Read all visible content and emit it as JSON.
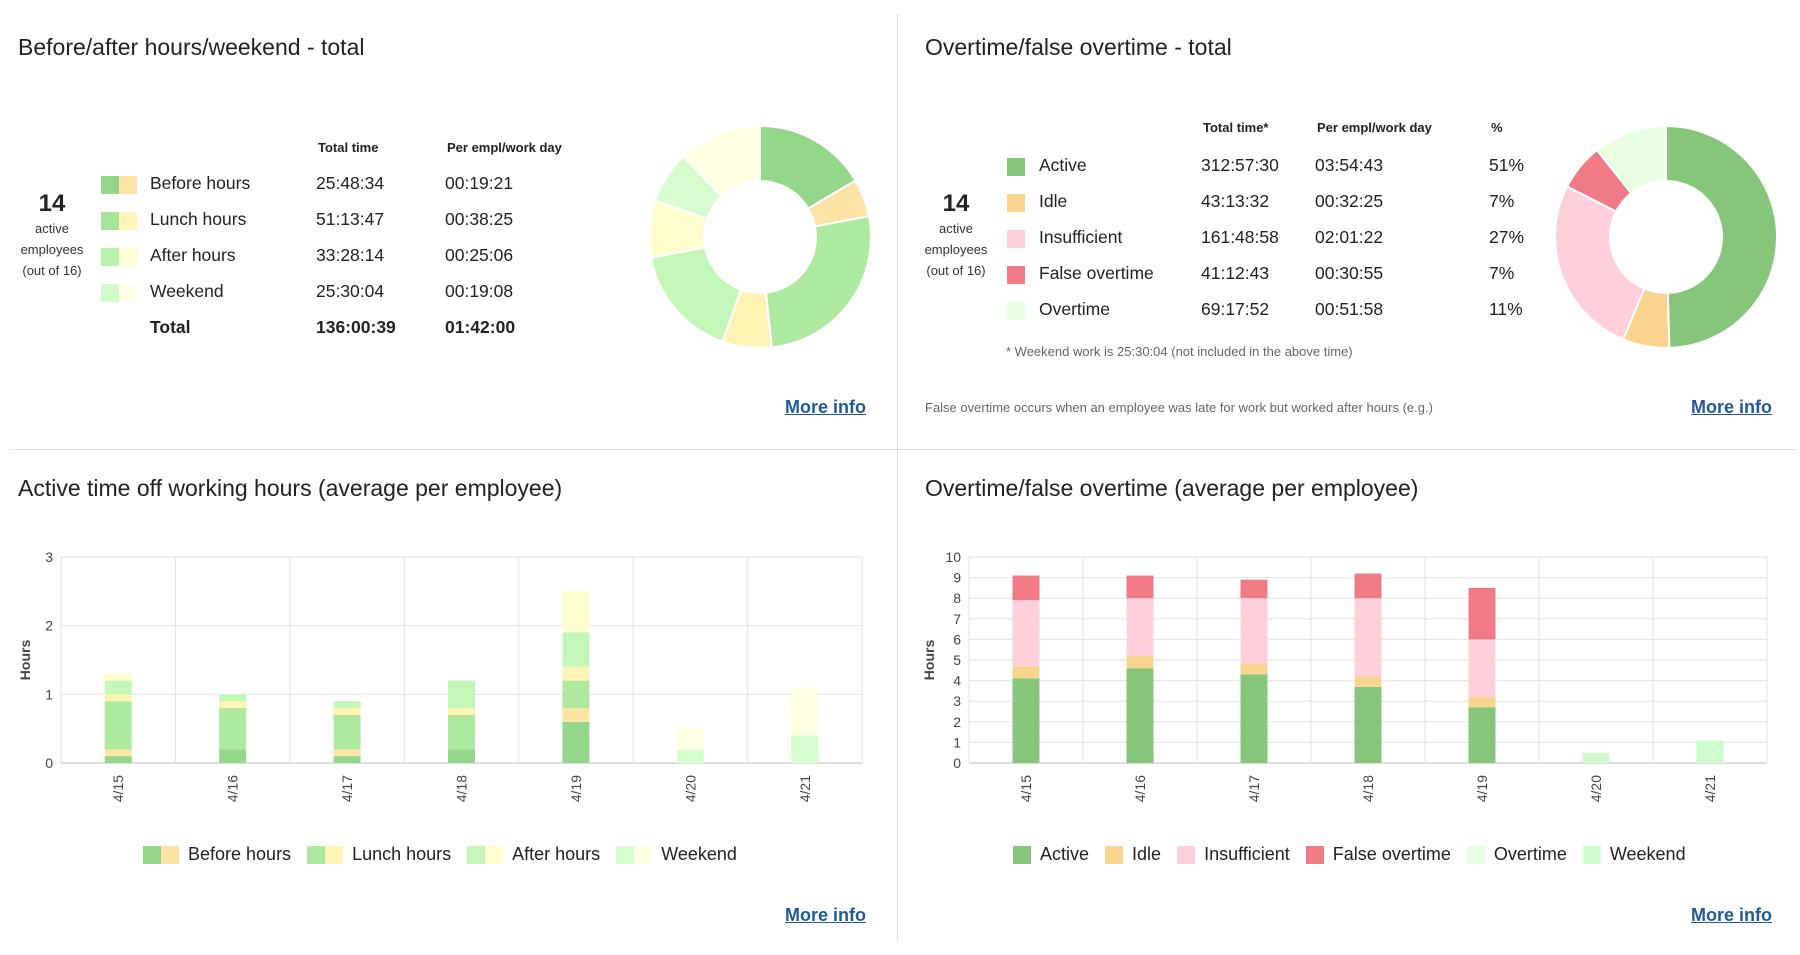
{
  "panel1": {
    "title": "Before/after hours/weekend - total",
    "employees": {
      "count": "14",
      "line1": "active",
      "line2": "employees",
      "line3": "(out of 16)"
    },
    "headers": {
      "total": "Total time",
      "per": "Per empl/work day"
    },
    "rows": [
      {
        "label": "Before hours",
        "total": "25:48:34",
        "per": "00:19:21",
        "c1": "#94d68a",
        "c2": "#fde3a6"
      },
      {
        "label": "Lunch hours",
        "total": "51:13:47",
        "per": "00:38:25",
        "c1": "#a8e39a",
        "c2": "#fff5b8"
      },
      {
        "label": "After hours",
        "total": "33:28:14",
        "per": "00:25:06",
        "c1": "#b9f2ae",
        "c2": "#fffcd6"
      },
      {
        "label": "Weekend",
        "total": "25:30:04",
        "per": "00:19:08",
        "c1": "#d2fbcc",
        "c2": "#ffffe6"
      }
    ],
    "total_row": {
      "label": "Total",
      "total": "136:00:39",
      "per": "01:42:00"
    },
    "more": "More info"
  },
  "panel2": {
    "title": "Overtime/false overtime - total",
    "employees": {
      "count": "14",
      "line1": "active",
      "line2": "employees",
      "line3": "(out of 16)"
    },
    "headers": {
      "total": "Total time*",
      "per": "Per empl/work day",
      "pct": "%"
    },
    "rows": [
      {
        "label": "Active",
        "total": "312:57:30",
        "per": "03:54:43",
        "pct": "51%",
        "color": "#85c67a"
      },
      {
        "label": "Idle",
        "total": "43:13:32",
        "per": "00:32:25",
        "pct": "7%",
        "color": "#f9d48e"
      },
      {
        "label": "Insufficient",
        "total": "161:48:58",
        "per": "02:01:22",
        "pct": "27%",
        "color": "#ffd0dc"
      },
      {
        "label": "False overtime",
        "total": "41:12:43",
        "per": "00:30:55",
        "pct": "7%",
        "color": "#f07b87"
      },
      {
        "label": "Overtime",
        "total": "69:17:52",
        "per": "00:51:58",
        "pct": "11%",
        "color": "#e9fde3"
      }
    ],
    "footnote": "* Weekend work is 25:30:04 (not included in the above time)",
    "note": "False overtime occurs when an employee was late for work but worked after hours (e.g.)",
    "more": "More info"
  },
  "panel3": {
    "title": "Active time off working hours (average per employee)",
    "more": "More info"
  },
  "panel4": {
    "title": "Overtime/false overtime (average per employee)",
    "more": "More info"
  },
  "chart_data": [
    {
      "type": "pie",
      "title": "Before/after hours/weekend - total",
      "slices": [
        {
          "name": "Before hours (green)",
          "value": 16.5,
          "color": "#94d68a"
        },
        {
          "name": "Before hours (yellow)",
          "value": 5.5,
          "color": "#fde3a6"
        },
        {
          "name": "Lunch hours (green)",
          "value": 26.3,
          "color": "#ade99f"
        },
        {
          "name": "Lunch hours (yellow)",
          "value": 7.2,
          "color": "#fff4b3"
        },
        {
          "name": "After hours (green)",
          "value": 16.5,
          "color": "#c3f7b7"
        },
        {
          "name": "After hours (yellow)",
          "value": 8.3,
          "color": "#fffccd"
        },
        {
          "name": "Weekend (green)",
          "value": 7.6,
          "color": "#d7fccf"
        },
        {
          "name": "Weekend (yellow)",
          "value": 12.1,
          "color": "#ffffe3"
        }
      ]
    },
    {
      "type": "pie",
      "title": "Overtime/false overtime - total",
      "slices": [
        {
          "name": "Active",
          "value": 51,
          "color": "#85c67a"
        },
        {
          "name": "Idle",
          "value": 7,
          "color": "#f9d48e"
        },
        {
          "name": "Insufficient",
          "value": 27,
          "color": "#ffd0dc"
        },
        {
          "name": "False overtime",
          "value": 7,
          "color": "#f07b87"
        },
        {
          "name": "Overtime",
          "value": 11,
          "color": "#e9fde3"
        }
      ]
    },
    {
      "type": "bar",
      "stacked": true,
      "title": "Active time off working hours (average per employee)",
      "ylabel": "Hours",
      "ylim": [
        0,
        3
      ],
      "yticks": [
        0,
        1,
        2,
        3
      ],
      "categories": [
        "4/15",
        "4/16",
        "4/17",
        "4/18",
        "4/19",
        "4/20",
        "4/21"
      ],
      "series": [
        {
          "name": "Before hours (green)",
          "color": "#94d68a",
          "values": [
            0.1,
            0.2,
            0.1,
            0.2,
            0.6,
            0,
            0
          ]
        },
        {
          "name": "Before hours (yellow)",
          "color": "#fde3a6",
          "values": [
            0.1,
            0,
            0.1,
            0,
            0.2,
            0,
            0
          ]
        },
        {
          "name": "Lunch hours (green)",
          "color": "#ade99f",
          "values": [
            0.7,
            0.6,
            0.5,
            0.5,
            0.4,
            0,
            0
          ]
        },
        {
          "name": "Lunch hours (yellow)",
          "color": "#fff4b3",
          "values": [
            0.1,
            0.1,
            0.1,
            0.1,
            0.2,
            0,
            0
          ]
        },
        {
          "name": "After hours (green)",
          "color": "#c3f7b7",
          "values": [
            0.2,
            0.1,
            0.1,
            0.4,
            0.5,
            0,
            0
          ]
        },
        {
          "name": "After hours (yellow)",
          "color": "#fffccd",
          "values": [
            0.1,
            0,
            0,
            0,
            0.6,
            0,
            0
          ]
        },
        {
          "name": "Weekend (green)",
          "color": "#d7fccf",
          "values": [
            0,
            0,
            0,
            0,
            0,
            0.2,
            0.4
          ]
        },
        {
          "name": "Weekend (yellow)",
          "color": "#ffffe3",
          "values": [
            0,
            0,
            0,
            0,
            0,
            0.3,
            0.7
          ]
        }
      ],
      "legend": [
        {
          "name": "Before hours",
          "colors": [
            "#94d68a",
            "#fde3a6"
          ]
        },
        {
          "name": "Lunch hours",
          "colors": [
            "#ade99f",
            "#fff4b3"
          ]
        },
        {
          "name": "After hours",
          "colors": [
            "#c3f7b7",
            "#fffccd"
          ]
        },
        {
          "name": "Weekend",
          "colors": [
            "#d7fccf",
            "#ffffe3"
          ]
        }
      ]
    },
    {
      "type": "bar",
      "stacked": true,
      "title": "Overtime/false overtime (average per employee)",
      "ylabel": "Hours",
      "ylim": [
        0,
        10
      ],
      "yticks": [
        0,
        1,
        2,
        3,
        4,
        5,
        6,
        7,
        8,
        9,
        10
      ],
      "categories": [
        "4/15",
        "4/16",
        "4/17",
        "4/18",
        "4/19",
        "4/20",
        "4/21"
      ],
      "series": [
        {
          "name": "Active",
          "color": "#85c67a",
          "values": [
            4.1,
            4.6,
            4.3,
            3.7,
            2.7,
            0,
            0
          ]
        },
        {
          "name": "Idle",
          "color": "#f9d48e",
          "values": [
            0.6,
            0.6,
            0.5,
            0.5,
            0.5,
            0,
            0
          ]
        },
        {
          "name": "Insufficient",
          "color": "#ffd0dc",
          "values": [
            3.2,
            2.8,
            3.2,
            3.8,
            2.8,
            0,
            0
          ]
        },
        {
          "name": "False overtime",
          "color": "#f07b87",
          "values": [
            1.2,
            1.1,
            0.9,
            1.2,
            2.5,
            0,
            0
          ]
        },
        {
          "name": "Overtime",
          "color": "#e9fde3",
          "values": [
            0,
            0,
            0,
            0,
            0,
            0,
            0
          ]
        },
        {
          "name": "Weekend",
          "color": "#cffacb",
          "values": [
            0,
            0,
            0,
            0,
            0,
            0.5,
            1.1
          ]
        }
      ]
    }
  ]
}
